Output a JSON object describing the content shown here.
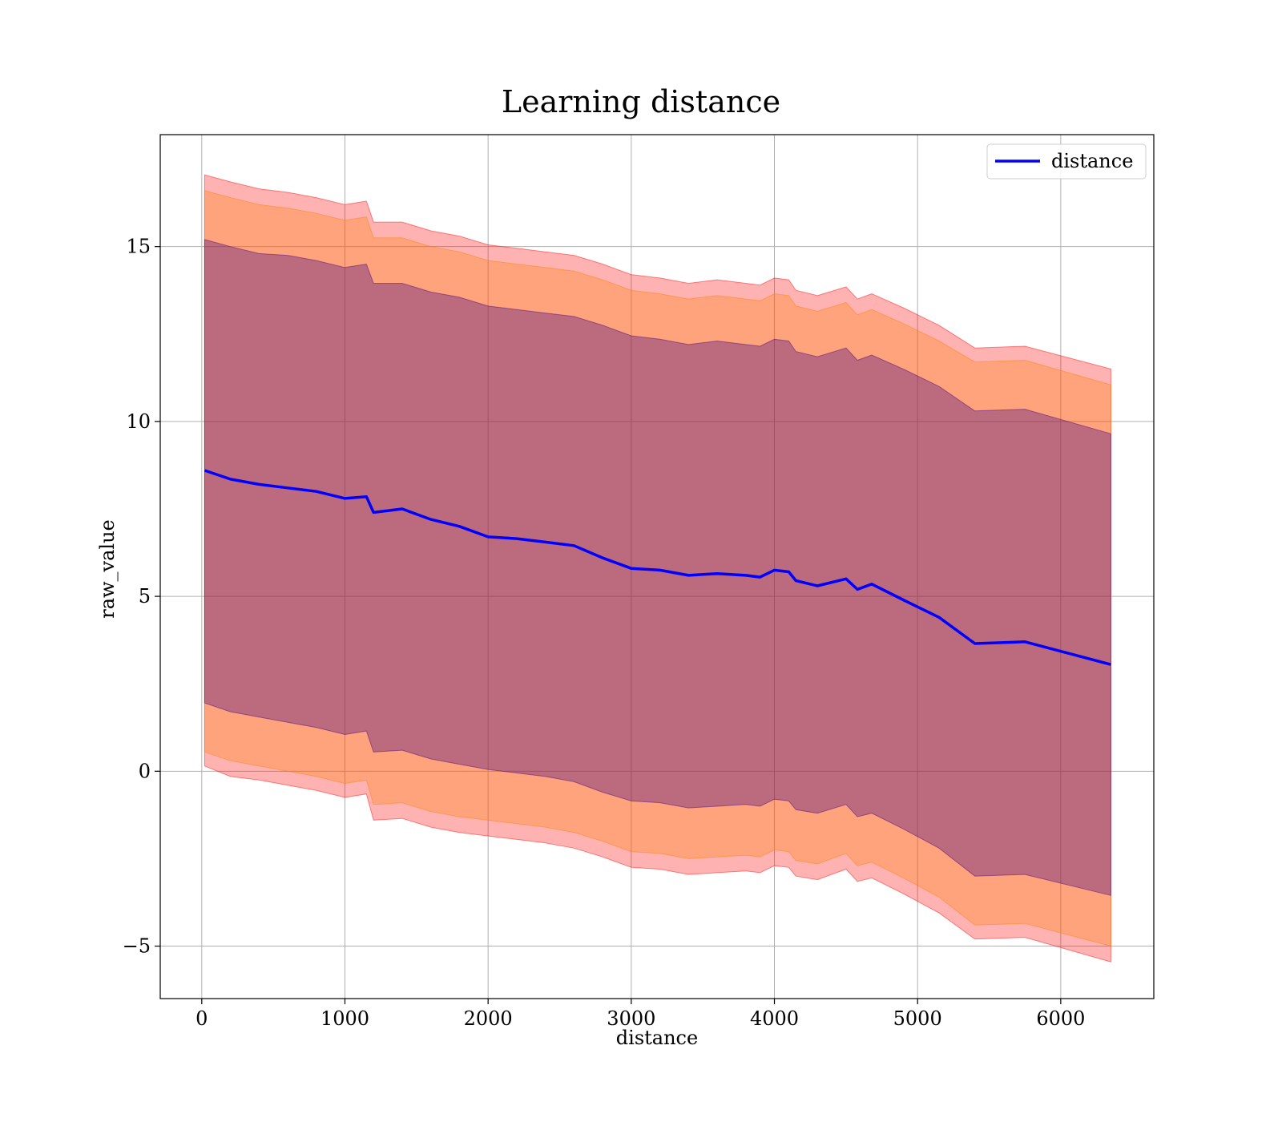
{
  "chart_data": {
    "type": "area",
    "title": "Learning distance",
    "xlabel": "distance",
    "ylabel": "raw_value",
    "xlim": [
      -290,
      6650
    ],
    "ylim": [
      -6.5,
      18.2
    ],
    "xticks": [
      0,
      1000,
      2000,
      3000,
      4000,
      5000,
      6000
    ],
    "yticks": [
      -5,
      0,
      5,
      10,
      15
    ],
    "ytick_labels": [
      "−5",
      "0",
      "5",
      "10",
      "15"
    ],
    "grid": true,
    "legend": {
      "placement": "top-right",
      "entries": [
        "distance"
      ]
    },
    "colors": {
      "line": "#0000ff",
      "band_outer": "#ff0000",
      "band_middle": "#ff8000",
      "band_inner": "#400080"
    },
    "x": [
      20,
      200,
      400,
      600,
      800,
      1000,
      1150,
      1200,
      1400,
      1600,
      1800,
      2000,
      2200,
      2400,
      2600,
      2800,
      3000,
      3200,
      3400,
      3600,
      3800,
      3900,
      4000,
      4100,
      4150,
      4300,
      4500,
      4580,
      4680,
      4900,
      5150,
      5400,
      5750,
      6350
    ],
    "series": [
      {
        "name": "distance",
        "values": [
          8.6,
          8.35,
          8.2,
          8.1,
          8.0,
          7.8,
          7.85,
          7.4,
          7.5,
          7.2,
          7.0,
          6.7,
          6.65,
          6.55,
          6.45,
          6.1,
          5.8,
          5.75,
          5.6,
          5.65,
          5.6,
          5.55,
          5.75,
          5.7,
          5.45,
          5.3,
          5.5,
          5.2,
          5.35,
          4.9,
          4.4,
          3.65,
          3.7,
          3.05
        ]
      }
    ],
    "bands": [
      {
        "lower": [
          0.15,
          -0.15,
          -0.25,
          -0.4,
          -0.55,
          -0.75,
          -0.65,
          -1.4,
          -1.35,
          -1.6,
          -1.75,
          -1.85,
          -1.95,
          -2.05,
          -2.2,
          -2.45,
          -2.75,
          -2.8,
          -2.95,
          -2.9,
          -2.85,
          -2.9,
          -2.7,
          -2.75,
          -3.0,
          -3.1,
          -2.8,
          -3.15,
          -3.05,
          -3.5,
          -4.05,
          -4.8,
          -4.75,
          -5.45
        ],
        "upper": [
          17.05,
          16.85,
          16.65,
          16.55,
          16.4,
          16.2,
          16.3,
          15.7,
          15.7,
          15.45,
          15.3,
          15.05,
          14.95,
          14.85,
          14.75,
          14.5,
          14.2,
          14.1,
          13.95,
          14.05,
          13.95,
          13.9,
          14.1,
          14.05,
          13.75,
          13.6,
          13.85,
          13.5,
          13.65,
          13.25,
          12.75,
          12.1,
          12.15,
          11.5
        ]
      },
      {
        "lower": [
          0.55,
          0.3,
          0.15,
          0.0,
          -0.15,
          -0.35,
          -0.25,
          -0.95,
          -0.9,
          -1.15,
          -1.3,
          -1.4,
          -1.5,
          -1.6,
          -1.75,
          -2.0,
          -2.3,
          -2.35,
          -2.5,
          -2.45,
          -2.4,
          -2.45,
          -2.25,
          -2.3,
          -2.55,
          -2.65,
          -2.35,
          -2.7,
          -2.6,
          -3.05,
          -3.6,
          -4.4,
          -4.35,
          -5.0
        ],
        "upper": [
          16.6,
          16.4,
          16.2,
          16.1,
          15.95,
          15.75,
          15.85,
          15.25,
          15.25,
          15.0,
          14.85,
          14.6,
          14.5,
          14.4,
          14.3,
          14.05,
          13.75,
          13.65,
          13.5,
          13.6,
          13.5,
          13.45,
          13.65,
          13.6,
          13.3,
          13.15,
          13.4,
          13.05,
          13.2,
          12.8,
          12.3,
          11.7,
          11.75,
          11.05
        ]
      },
      {
        "lower": [
          1.95,
          1.7,
          1.55,
          1.4,
          1.25,
          1.05,
          1.15,
          0.55,
          0.6,
          0.35,
          0.2,
          0.05,
          -0.05,
          -0.15,
          -0.3,
          -0.6,
          -0.85,
          -0.9,
          -1.05,
          -1.0,
          -0.95,
          -1.0,
          -0.8,
          -0.85,
          -1.1,
          -1.2,
          -0.95,
          -1.3,
          -1.2,
          -1.65,
          -2.2,
          -3.0,
          -2.95,
          -3.55
        ],
        "upper": [
          15.2,
          15.0,
          14.8,
          14.75,
          14.6,
          14.4,
          14.5,
          13.95,
          13.95,
          13.7,
          13.55,
          13.3,
          13.2,
          13.1,
          13.0,
          12.75,
          12.45,
          12.35,
          12.2,
          12.3,
          12.2,
          12.15,
          12.35,
          12.3,
          12.0,
          11.85,
          12.1,
          11.75,
          11.9,
          11.5,
          11.0,
          10.3,
          10.35,
          9.65
        ]
      }
    ]
  }
}
